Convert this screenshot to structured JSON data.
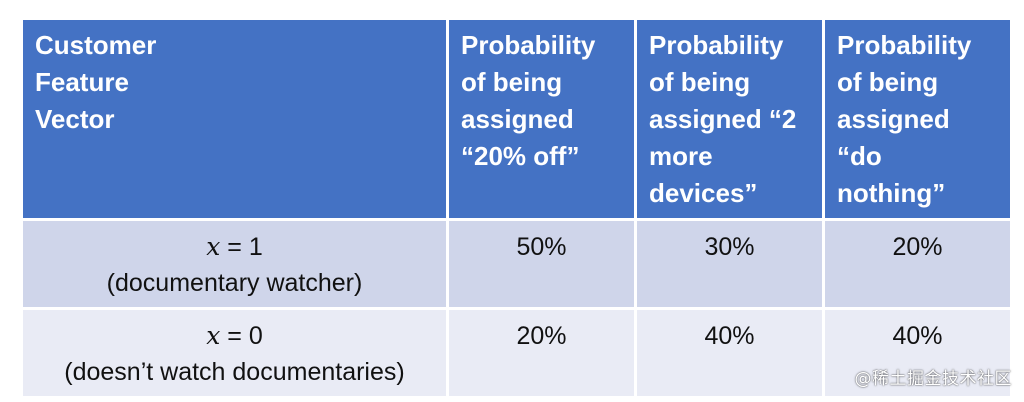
{
  "table": {
    "headers": [
      {
        "lines": [
          "Customer",
          "Feature",
          "Vector"
        ]
      },
      {
        "lines": [
          "Probability",
          "of being",
          "assigned",
          "“20% off”"
        ]
      },
      {
        "lines": [
          "Probability",
          "of being",
          "assigned “2",
          "more",
          "devices”"
        ]
      },
      {
        "lines": [
          "Probability",
          "of being",
          "assigned",
          "“do",
          "nothing”"
        ]
      }
    ],
    "rows": [
      {
        "var": "x",
        "eq": " = 1",
        "desc": "(documentary watcher)",
        "values": [
          "50%",
          "30%",
          "20%"
        ]
      },
      {
        "var": "x",
        "eq": " = 0",
        "desc": "(doesn’t watch documentaries)",
        "values": [
          "20%",
          "40%",
          "40%"
        ]
      }
    ]
  },
  "watermark": "@稀土掘金技术社区",
  "colors": {
    "header_bg": "#4472c4",
    "row_odd_bg": "#cfd5ea",
    "row_even_bg": "#e9ebf5"
  }
}
